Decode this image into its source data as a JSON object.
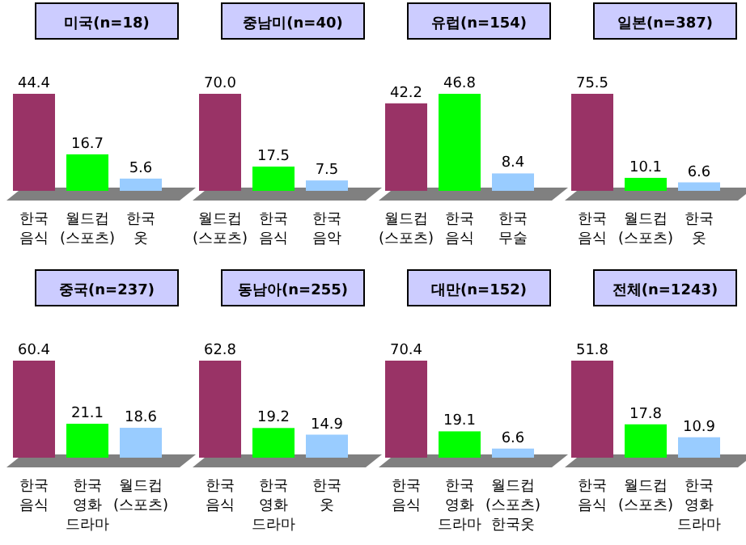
{
  "chart_data": [
    {
      "type": "bar",
      "title": "미국(n=18)",
      "categories": [
        "한국\n음식",
        "월드컵\n(스포츠)",
        "한국\n옷"
      ],
      "values": [
        44.4,
        16.7,
        5.6
      ],
      "colors": [
        "#993366",
        "#00ff00",
        "#99ccff"
      ],
      "data_labels": true
    },
    {
      "type": "bar",
      "title": "중남미(n=40)",
      "categories": [
        "월드컵\n(스포츠)",
        "한국\n음식",
        "한국\n음악"
      ],
      "values": [
        70.0,
        17.5,
        7.5
      ],
      "colors": [
        "#993366",
        "#00ff00",
        "#99ccff"
      ],
      "value_labels": [
        "70.0",
        "17.5",
        "7.5"
      ]
    },
    {
      "type": "bar",
      "title": "유럽(n=154)",
      "categories": [
        "월드컵\n(스포츠)",
        "한국\n음식",
        "한국\n무술"
      ],
      "values": [
        42.2,
        46.8,
        8.4
      ],
      "colors": [
        "#993366",
        "#00ff00",
        "#99ccff"
      ],
      "data_labels": true
    },
    {
      "type": "bar",
      "title": "일본(n=387)",
      "categories": [
        "한국\n음식",
        "월드컵\n(스포츠)",
        "한국\n옷"
      ],
      "values": [
        75.5,
        10.1,
        6.6
      ],
      "colors": [
        "#993366",
        "#00ff00",
        "#99ccff"
      ],
      "data_labels": true
    },
    {
      "type": "bar",
      "title": "중국(n=237)",
      "categories": [
        "한국\n음식",
        "한국\n영화\n드라마",
        "월드컵\n(스포츠)"
      ],
      "values": [
        60.4,
        21.1,
        18.6
      ],
      "colors": [
        "#993366",
        "#00ff00",
        "#99ccff"
      ],
      "data_labels": true
    },
    {
      "type": "bar",
      "title": "동남아(n=255)",
      "categories": [
        "한국\n음식",
        "한국\n영화\n드라마",
        "한국\n옷"
      ],
      "values": [
        62.8,
        19.2,
        14.9
      ],
      "colors": [
        "#993366",
        "#00ff00",
        "#99ccff"
      ],
      "data_labels": true
    },
    {
      "type": "bar",
      "title": "대만(n=152)",
      "categories": [
        "한국\n음식",
        "한국\n영화\n드라마",
        "월드컵\n(스포츠)\n한국옷"
      ],
      "values": [
        70.4,
        19.1,
        6.6
      ],
      "colors": [
        "#993366",
        "#00ff00",
        "#99ccff"
      ],
      "data_labels": true
    },
    {
      "type": "bar",
      "title": "전체(n=1243)",
      "categories": [
        "한국\n음식",
        "월드컵\n(스포츠)",
        "한국\n영화\n드라마"
      ],
      "values": [
        51.8,
        17.8,
        10.9
      ],
      "colors": [
        "#993366",
        "#00ff00",
        "#99ccff"
      ],
      "data_labels": true
    }
  ]
}
